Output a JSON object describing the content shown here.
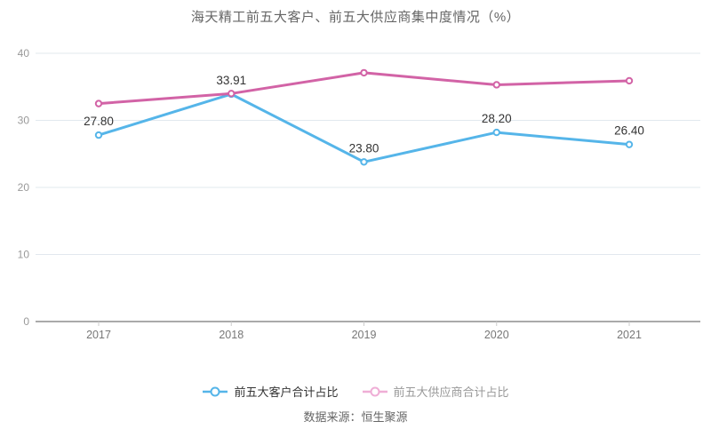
{
  "title": "海天精工前五大客户、前五大供应商集中度情况（%）",
  "source": "数据来源：恒生聚源",
  "legend": {
    "muted_marker_color": "#efaed6",
    "active_text_color": "#333333",
    "muted_text_color": "#999999"
  },
  "chart_data": {
    "type": "line",
    "categories": [
      "2017",
      "2018",
      "2019",
      "2020",
      "2021"
    ],
    "series": [
      {
        "name": "前五大客户合计占比",
        "color": "#55b5e9",
        "values": [
          27.8,
          33.91,
          23.8,
          28.2,
          26.4
        ],
        "labels": [
          "27.80",
          "33.91",
          "23.80",
          "28.20",
          "26.40"
        ],
        "show_labels": true
      },
      {
        "name": "前五大供应商合计占比",
        "color": "#d263a6",
        "values": [
          32.5,
          34.0,
          37.1,
          35.3,
          35.9
        ],
        "labels": [],
        "show_labels": false
      }
    ],
    "title": "海天精工前五大客户、前五大供应商集中度情况（%）",
    "xlabel": "",
    "ylabel": "",
    "ylim": [
      0,
      40
    ],
    "yticks": [
      0,
      10,
      20,
      30,
      40
    ],
    "grid": true,
    "legend_position": "bottom",
    "style": {
      "grid_color": "#e2e8ee",
      "axis_color": "#555555",
      "tick_color": "#cccccc",
      "ytick_label_color": "#999999",
      "xtick_label_color": "#777777",
      "data_label_color": "#333333"
    }
  }
}
